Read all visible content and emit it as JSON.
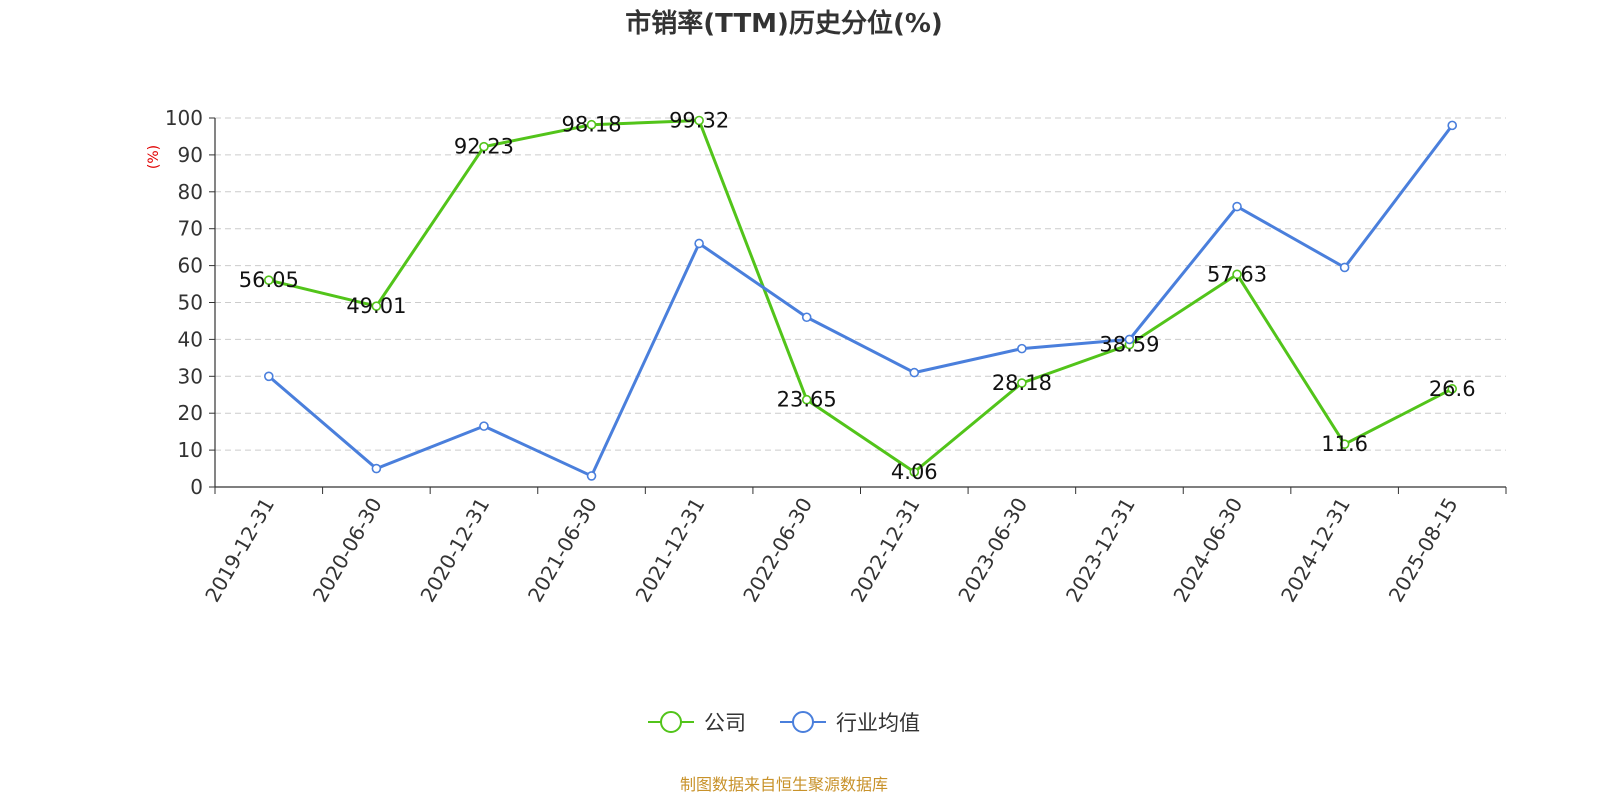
{
  "chart_data": {
    "type": "line",
    "title": "市销率(TTM)历史分位(%)",
    "ylabel": "(%)",
    "ylim": [
      0,
      100
    ],
    "yticks": [
      0,
      10,
      20,
      30,
      40,
      50,
      60,
      70,
      80,
      90,
      100
    ],
    "grid": true,
    "categories": [
      "2019-12-31",
      "2020-06-30",
      "2020-12-31",
      "2021-06-30",
      "2021-12-31",
      "2022-06-30",
      "2022-12-31",
      "2023-06-30",
      "2023-12-31",
      "2024-06-30",
      "2024-12-31",
      "2025-08-15"
    ],
    "series": [
      {
        "name": "公司",
        "color": "#52c41a",
        "values": [
          56.05,
          49.01,
          92.23,
          98.18,
          99.32,
          23.65,
          4.06,
          28.18,
          38.59,
          57.63,
          11.6,
          26.6
        ],
        "labels": [
          "56.05",
          "49.01",
          "92.23",
          "98.18",
          "99.32",
          "23.65",
          "4.06",
          "28.18",
          "38.59",
          "57.63",
          "11.6",
          "26.6"
        ]
      },
      {
        "name": "行业均值",
        "color": "#4a7fdc",
        "values": [
          30,
          5,
          16.5,
          3,
          66,
          46,
          31,
          37.5,
          40,
          76,
          59.5,
          98
        ]
      }
    ],
    "legend_position": "bottom-center",
    "source": "制图数据来自恒生聚源数据库"
  }
}
